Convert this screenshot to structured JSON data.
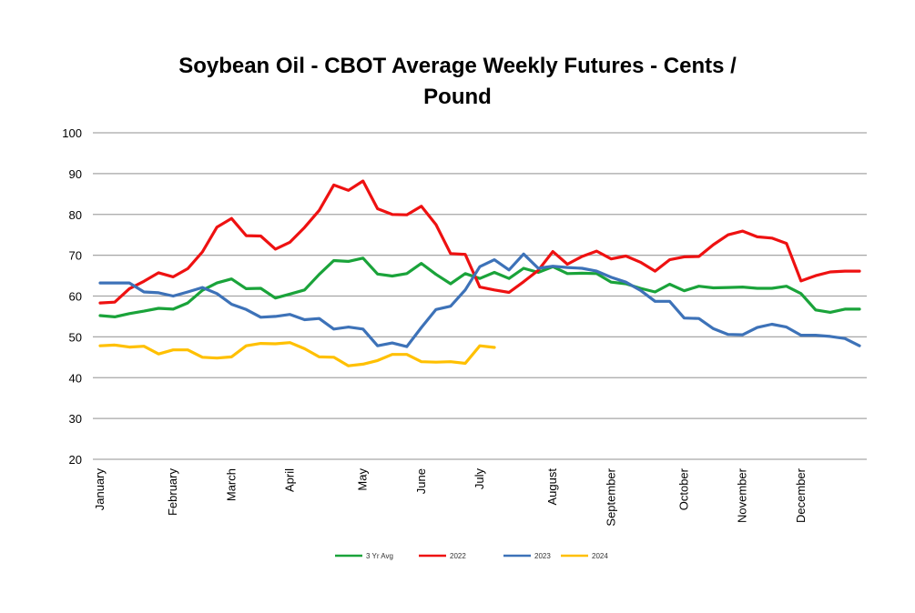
{
  "title_line1": "Soybean Oil - CBOT Average Weekly Futures - Cents /",
  "title_line2": "Pound",
  "chart_data": {
    "type": "line",
    "title": "Soybean Oil - CBOT Average Weekly Futures - Cents / Pound",
    "xlabel": "",
    "ylabel": "",
    "ylim": [
      20,
      100
    ],
    "yticks": [
      20,
      30,
      40,
      50,
      60,
      70,
      80,
      90,
      100
    ],
    "grid": "horizontal",
    "legend_position": "bottom",
    "weeks": 52,
    "month_labels": [
      {
        "label": "January",
        "week": 1
      },
      {
        "label": "February",
        "week": 6
      },
      {
        "label": "March",
        "week": 10
      },
      {
        "label": "April",
        "week": 14
      },
      {
        "label": "May",
        "week": 19
      },
      {
        "label": "June",
        "week": 23
      },
      {
        "label": "July",
        "week": 27
      },
      {
        "label": "August",
        "week": 32
      },
      {
        "label": "September",
        "week": 36
      },
      {
        "label": "October",
        "week": 41
      },
      {
        "label": "November",
        "week": 45
      },
      {
        "label": "December",
        "week": 49
      }
    ],
    "series": [
      {
        "name": "3 Yr Avg",
        "color": "#1aa33a",
        "values": [
          55.2,
          54.9,
          55.7,
          56.3,
          57.0,
          56.8,
          58.3,
          61.4,
          63.2,
          64.2,
          61.8,
          61.9,
          59.5,
          60.5,
          61.5,
          65.3,
          68.7,
          68.5,
          69.3,
          65.4,
          64.9,
          65.5,
          68.0,
          65.3,
          63.0,
          65.5,
          64.3,
          65.8,
          64.3,
          66.8,
          65.8,
          67.2,
          65.5,
          65.6,
          65.5,
          63.4,
          63.0,
          61.9,
          61.0,
          62.9,
          61.3,
          62.4,
          62.0,
          62.1,
          62.2,
          61.9,
          61.9,
          62.4,
          60.6,
          56.6,
          56.0,
          56.8,
          56.8
        ]
      },
      {
        "name": "2022",
        "color": "#ee1111",
        "values": [
          58.3,
          58.5,
          61.8,
          63.6,
          65.7,
          64.7,
          66.7,
          70.8,
          76.9,
          79.0,
          74.8,
          74.7,
          71.5,
          73.2,
          76.8,
          81.0,
          87.2,
          85.9,
          88.2,
          81.4,
          80.0,
          79.9,
          82.0,
          77.5,
          70.4,
          70.2,
          62.2,
          61.5,
          60.9,
          63.5,
          66.3,
          70.9,
          67.8,
          69.7,
          71.0,
          69.1,
          69.8,
          68.3,
          66.1,
          68.9,
          69.6,
          69.7,
          72.6,
          75.0,
          75.9,
          74.5,
          74.2,
          72.9,
          63.7,
          65.0,
          65.9,
          66.1,
          66.1
        ]
      },
      {
        "name": "2023",
        "color": "#3d72b8",
        "values": [
          63.2,
          63.2,
          63.2,
          61.0,
          60.8,
          60.0,
          61.0,
          62.1,
          60.6,
          58.0,
          56.7,
          54.8,
          55.0,
          55.5,
          54.2,
          54.5,
          51.9,
          52.4,
          51.9,
          47.8,
          48.5,
          47.6,
          52.3,
          56.7,
          57.5,
          61.5,
          67.2,
          68.9,
          66.4,
          70.3,
          66.8,
          67.3,
          67.0,
          66.8,
          66.1,
          64.6,
          63.4,
          61.4,
          58.7,
          58.7,
          54.6,
          54.5,
          52.0,
          50.6,
          50.5,
          52.3,
          53.1,
          52.4,
          50.4,
          50.4,
          50.1,
          49.6,
          47.8
        ]
      },
      {
        "name": "2024",
        "color": "#ffc000",
        "values": [
          47.8,
          48.0,
          47.5,
          47.7,
          45.8,
          46.8,
          46.8,
          45.0,
          44.8,
          45.1,
          47.8,
          48.4,
          48.3,
          48.6,
          47.1,
          45.1,
          45.0,
          42.9,
          43.3,
          44.2,
          45.7,
          45.7,
          43.9,
          43.8,
          43.9,
          43.5,
          47.8,
          47.4
        ]
      }
    ]
  }
}
